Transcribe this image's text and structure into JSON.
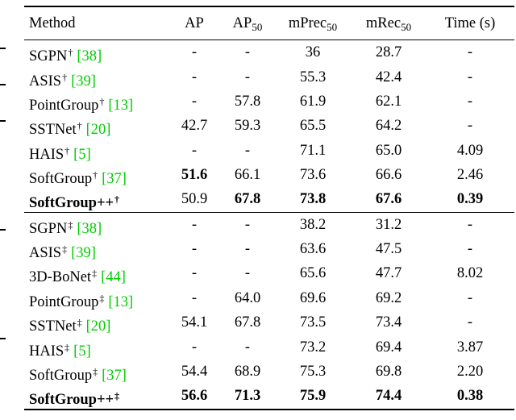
{
  "colors": {
    "citation_green": "#00cc00",
    "text": "#000000",
    "background": "#ffffff"
  },
  "table": {
    "headers": [
      {
        "label": "Method",
        "sub": ""
      },
      {
        "label": "AP",
        "sub": ""
      },
      {
        "label": "AP",
        "sub": "50"
      },
      {
        "label": "mPrec",
        "sub": "50"
      },
      {
        "label": "mRec",
        "sub": "50"
      },
      {
        "label": "Time (s)",
        "sub": ""
      }
    ],
    "groups": [
      {
        "rows": [
          {
            "method": "SGPN",
            "marker": "†",
            "cite": "[38]",
            "method_bold": false,
            "values": [
              "-",
              "-",
              "36",
              "28.7",
              "-"
            ],
            "bold": [
              false,
              false,
              false,
              false,
              false
            ]
          },
          {
            "method": "ASIS",
            "marker": "†",
            "cite": "[39]",
            "method_bold": false,
            "values": [
              "-",
              "-",
              "55.3",
              "42.4",
              "-"
            ],
            "bold": [
              false,
              false,
              false,
              false,
              false
            ]
          },
          {
            "method": "PointGroup",
            "marker": "†",
            "cite": "[13]",
            "method_bold": false,
            "values": [
              "-",
              "57.8",
              "61.9",
              "62.1",
              "-"
            ],
            "bold": [
              false,
              false,
              false,
              false,
              false
            ]
          },
          {
            "method": "SSTNet",
            "marker": "†",
            "cite": "[20]",
            "method_bold": false,
            "values": [
              "42.7",
              "59.3",
              "65.5",
              "64.2",
              "-"
            ],
            "bold": [
              false,
              false,
              false,
              false,
              false
            ]
          },
          {
            "method": "HAIS",
            "marker": "†",
            "cite": "[5]",
            "method_bold": false,
            "values": [
              "-",
              "-",
              "71.1",
              "65.0",
              "4.09"
            ],
            "bold": [
              false,
              false,
              false,
              false,
              false
            ]
          },
          {
            "method": "SoftGroup",
            "marker": "†",
            "cite": "[37]",
            "method_bold": false,
            "values": [
              "51.6",
              "66.1",
              "73.6",
              "66.6",
              "2.46"
            ],
            "bold": [
              true,
              false,
              false,
              false,
              false
            ]
          },
          {
            "method": "SoftGroup++",
            "marker": "†",
            "cite": "",
            "method_bold": true,
            "values": [
              "50.9",
              "67.8",
              "73.8",
              "67.6",
              "0.39"
            ],
            "bold": [
              false,
              true,
              true,
              true,
              true
            ]
          }
        ]
      },
      {
        "rows": [
          {
            "method": "SGPN",
            "marker": "‡",
            "cite": "[38]",
            "method_bold": false,
            "values": [
              "-",
              "-",
              "38.2",
              "31.2",
              "-"
            ],
            "bold": [
              false,
              false,
              false,
              false,
              false
            ]
          },
          {
            "method": "ASIS",
            "marker": "‡",
            "cite": "[39]",
            "method_bold": false,
            "values": [
              "-",
              "-",
              "63.6",
              "47.5",
              "-"
            ],
            "bold": [
              false,
              false,
              false,
              false,
              false
            ]
          },
          {
            "method": "3D-BoNet",
            "marker": "‡",
            "cite": "[44]",
            "method_bold": false,
            "values": [
              "-",
              "-",
              "65.6",
              "47.7",
              "8.02"
            ],
            "bold": [
              false,
              false,
              false,
              false,
              false
            ]
          },
          {
            "method": "PointGroup",
            "marker": "‡",
            "cite": "[13]",
            "method_bold": false,
            "values": [
              "-",
              "64.0",
              "69.6",
              "69.2",
              "-"
            ],
            "bold": [
              false,
              false,
              false,
              false,
              false
            ]
          },
          {
            "method": "SSTNet",
            "marker": "‡",
            "cite": "[20]",
            "method_bold": false,
            "values": [
              "54.1",
              "67.8",
              "73.5",
              "73.4",
              "-"
            ],
            "bold": [
              false,
              false,
              false,
              false,
              false
            ]
          },
          {
            "method": "HAIS",
            "marker": "‡",
            "cite": "[5]",
            "method_bold": false,
            "values": [
              "-",
              "-",
              "73.2",
              "69.4",
              "3.87"
            ],
            "bold": [
              false,
              false,
              false,
              false,
              false
            ]
          },
          {
            "method": "SoftGroup",
            "marker": "‡",
            "cite": "[37]",
            "method_bold": false,
            "values": [
              "54.4",
              "68.9",
              "75.3",
              "69.8",
              "2.20"
            ],
            "bold": [
              false,
              false,
              false,
              false,
              false
            ]
          },
          {
            "method": "SoftGroup++",
            "marker": "‡",
            "cite": "",
            "method_bold": true,
            "values": [
              "56.6",
              "71.3",
              "75.9",
              "74.4",
              "0.38"
            ],
            "bold": [
              true,
              true,
              true,
              true,
              true
            ]
          }
        ]
      }
    ]
  }
}
